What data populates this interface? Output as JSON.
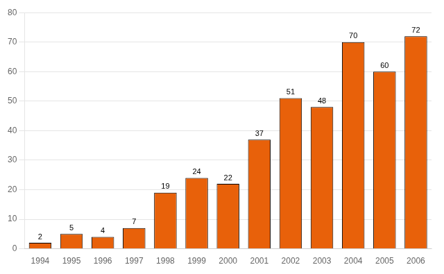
{
  "chart_data": {
    "type": "bar",
    "categories": [
      "1994",
      "1995",
      "1996",
      "1997",
      "1998",
      "1999",
      "2000",
      "2001",
      "2002",
      "2003",
      "2004",
      "2005",
      "2006"
    ],
    "values": [
      2,
      5,
      4,
      7,
      19,
      24,
      22,
      37,
      51,
      48,
      70,
      60,
      72
    ],
    "color": "#E8610A",
    "ylim": [
      0,
      80
    ],
    "yticks": [
      0,
      10,
      20,
      30,
      40,
      50,
      60,
      70,
      80
    ],
    "grid": true,
    "data_labels": true
  }
}
